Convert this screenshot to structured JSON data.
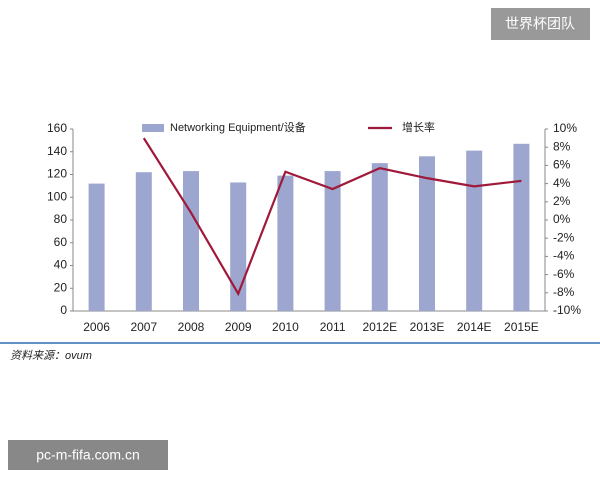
{
  "watermark_top": "世界杯团队",
  "watermark_bottom": "pc-m-fifa.com.cn",
  "source": "资料来源：ovum",
  "chart_data": {
    "type": "bar",
    "categories": [
      "2006",
      "2007",
      "2008",
      "2009",
      "2010",
      "2011",
      "2012E",
      "2013E",
      "2014E",
      "2015E"
    ],
    "series": [
      {
        "name": "Networking Equipment/设备",
        "color": "#9ca6cf",
        "type": "bar",
        "values": [
          112,
          122,
          123,
          113,
          119,
          123,
          130,
          136,
          141,
          147
        ]
      },
      {
        "name": "增长率",
        "color": "#a0193a",
        "type": "line",
        "axis": "y2",
        "values": [
          null,
          9,
          0.8,
          -8.1,
          5.3,
          3.4,
          5.7,
          4.6,
          3.7,
          4.3
        ]
      }
    ],
    "ylim": [
      0,
      160
    ],
    "yticks": [
      0,
      20,
      40,
      60,
      80,
      100,
      120,
      140,
      160
    ],
    "y2lim": [
      -10,
      10
    ],
    "y2ticks": [
      {
        "value": -10,
        "label": "-10%"
      },
      {
        "value": -8,
        "label": "-8%"
      },
      {
        "value": -6,
        "label": "-6%"
      },
      {
        "value": -4,
        "label": "-4%"
      },
      {
        "value": -2,
        "label": "-2%"
      },
      {
        "value": 0,
        "label": "0%"
      },
      {
        "value": 2,
        "label": "2%"
      },
      {
        "value": 4,
        "label": "4%"
      },
      {
        "value": 6,
        "label": "6%"
      },
      {
        "value": 8,
        "label": "8%"
      },
      {
        "value": 10,
        "label": "10%"
      }
    ],
    "grid": false,
    "legend": "top"
  }
}
